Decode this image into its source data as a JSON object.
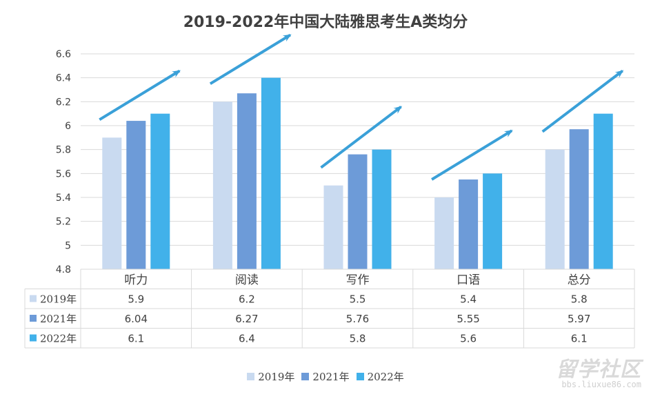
{
  "chart_data": {
    "type": "bar",
    "title": "2019-2022年中国大陆雅思考生A类均分",
    "categories": [
      "听力",
      "阅读",
      "写作",
      "口语",
      "总分"
    ],
    "series": [
      {
        "name": "2019年",
        "color": "#c9daf0",
        "values": [
          5.9,
          6.2,
          5.5,
          5.4,
          5.8
        ],
        "labels": [
          "5.9",
          "6.2",
          "5.5",
          "5.4",
          "5.8"
        ]
      },
      {
        "name": "2021年",
        "color": "#6d9bd8",
        "values": [
          6.04,
          6.27,
          5.76,
          5.55,
          5.97
        ],
        "labels": [
          "6.04",
          "6.27",
          "5.76",
          "5.55",
          "5.97"
        ]
      },
      {
        "name": "2022年",
        "color": "#41b1ea",
        "values": [
          6.1,
          6.4,
          5.8,
          5.6,
          6.1
        ],
        "labels": [
          "6.1",
          "6.4",
          "5.8",
          "5.6",
          "6.1"
        ]
      }
    ],
    "ylim": [
      4.8,
      6.6
    ],
    "yticks": [
      "4.8",
      "5",
      "5.2",
      "5.4",
      "5.6",
      "5.8",
      "6",
      "6.2",
      "6.4",
      "6.6"
    ],
    "grid": true,
    "data_table": true,
    "legend_position": "bottom",
    "arrow_color": "#3aa0d8",
    "axis_color": "#d9d9d9"
  },
  "watermark": {
    "main": "留学社区",
    "sub": "bbs.liuxue86.com"
  }
}
